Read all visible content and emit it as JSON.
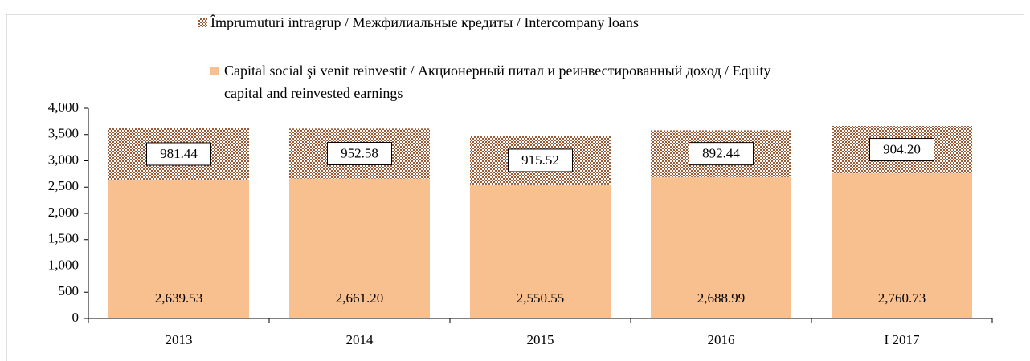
{
  "chart_data": {
    "type": "stacked_bar",
    "categories": [
      "2013",
      "2014",
      "2015",
      "2016",
      "I 2017"
    ],
    "series": [
      {
        "name": "Capital social şi venit reinvestit / Акционерный питал и реинвестированный доход / Equity capital and reinvested earnings",
        "color": "#f9c08f",
        "values": [
          2639.53,
          2661.2,
          2550.55,
          2688.99,
          2760.73
        ],
        "value_labels": [
          "2,639.53",
          "2,661.20",
          "2,550.55",
          "2,688.99",
          "2,760.73"
        ]
      },
      {
        "name": "Împrumuturi intragrup / Межфилиальные кредиты / Intercompany loans",
        "color": "#9b5a34",
        "values": [
          981.44,
          952.58,
          915.52,
          892.44,
          904.2
        ],
        "value_labels": [
          "981.44",
          "952.58",
          "915.52",
          "892.44",
          "904.20"
        ]
      }
    ],
    "ylim": [
      0,
      4000
    ],
    "yticks": [
      0,
      500,
      {
        "value": 1000,
        "label": "1,000"
      },
      {
        "value": 1500,
        "label": "1,500"
      },
      {
        "value": 2000,
        "label": "2,000"
      },
      {
        "value": 2500,
        "label": "2,500"
      },
      {
        "value": 3000,
        "label": "3,000"
      },
      {
        "value": 3500,
        "label": "3,500"
      },
      {
        "value": 4000,
        "label": "4,000"
      }
    ]
  }
}
